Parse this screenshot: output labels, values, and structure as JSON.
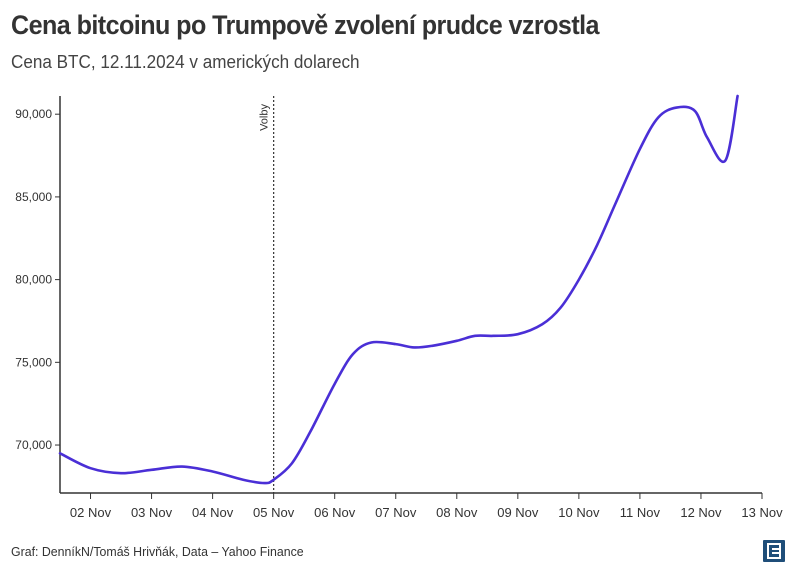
{
  "header": {
    "title": "Cena bitcoinu po Trumpově zvolení prudce vzrostla",
    "subtitle": "Cena BTC, 12.11.2024 v amerických dolarech"
  },
  "footer": {
    "source": "Graf: DenníkN/Tomáš Hrivňák, Data – Yahoo Finance"
  },
  "logo": {
    "icon": "denniknlogo-icon",
    "color": "#1f4e79"
  },
  "chart_data": {
    "type": "line",
    "title": "Cena bitcoinu po Trumpově zvolení prudce vzrostla",
    "subtitle": "Cena BTC, 12.11.2024 v amerických dolarech",
    "xlabel": "",
    "ylabel": "",
    "x_ticks": [
      {
        "x": 2,
        "label": "02 Nov"
      },
      {
        "x": 3,
        "label": "03 Nov"
      },
      {
        "x": 4,
        "label": "04 Nov"
      },
      {
        "x": 5,
        "label": "05 Nov"
      },
      {
        "x": 6,
        "label": "06 Nov"
      },
      {
        "x": 7,
        "label": "07 Nov"
      },
      {
        "x": 8,
        "label": "08 Nov"
      },
      {
        "x": 9,
        "label": "09 Nov"
      },
      {
        "x": 10,
        "label": "10 Nov"
      },
      {
        "x": 11,
        "label": "11 Nov"
      },
      {
        "x": 12,
        "label": "12 Nov"
      },
      {
        "x": 13,
        "label": "13 Nov"
      }
    ],
    "y_ticks": [
      {
        "value": 70000,
        "label": "70,000"
      },
      {
        "value": 75000,
        "label": "75,000"
      },
      {
        "value": 80000,
        "label": "80,000"
      },
      {
        "value": 85000,
        "label": "85,000"
      },
      {
        "value": 90000,
        "label": "90,000"
      }
    ],
    "xlim": [
      1.5,
      13
    ],
    "ylim": [
      67100,
      91100
    ],
    "grid": false,
    "color": "#4a2fd6",
    "annotation": {
      "x": 5,
      "label": "Volby"
    },
    "series": [
      {
        "x": [
          1.5,
          2.0,
          2.5,
          3.0,
          3.5,
          4.0,
          4.5,
          4.85,
          5.0,
          5.3,
          5.6,
          6.0,
          6.3,
          6.6,
          7.0,
          7.3,
          7.6,
          8.0,
          8.3,
          8.6,
          9.0,
          9.4,
          9.7,
          10.0,
          10.3,
          10.6,
          11.0,
          11.3,
          11.6,
          11.9,
          12.1,
          12.4,
          12.6
        ],
        "y": [
          69500,
          68600,
          68300,
          68500,
          68700,
          68400,
          67900,
          67700,
          67900,
          68900,
          70800,
          73700,
          75500,
          76200,
          76100,
          75900,
          76000,
          76300,
          76600,
          76600,
          76700,
          77300,
          78300,
          80000,
          82100,
          84600,
          87900,
          89800,
          90400,
          90200,
          88600,
          87200,
          91100
        ]
      }
    ]
  }
}
